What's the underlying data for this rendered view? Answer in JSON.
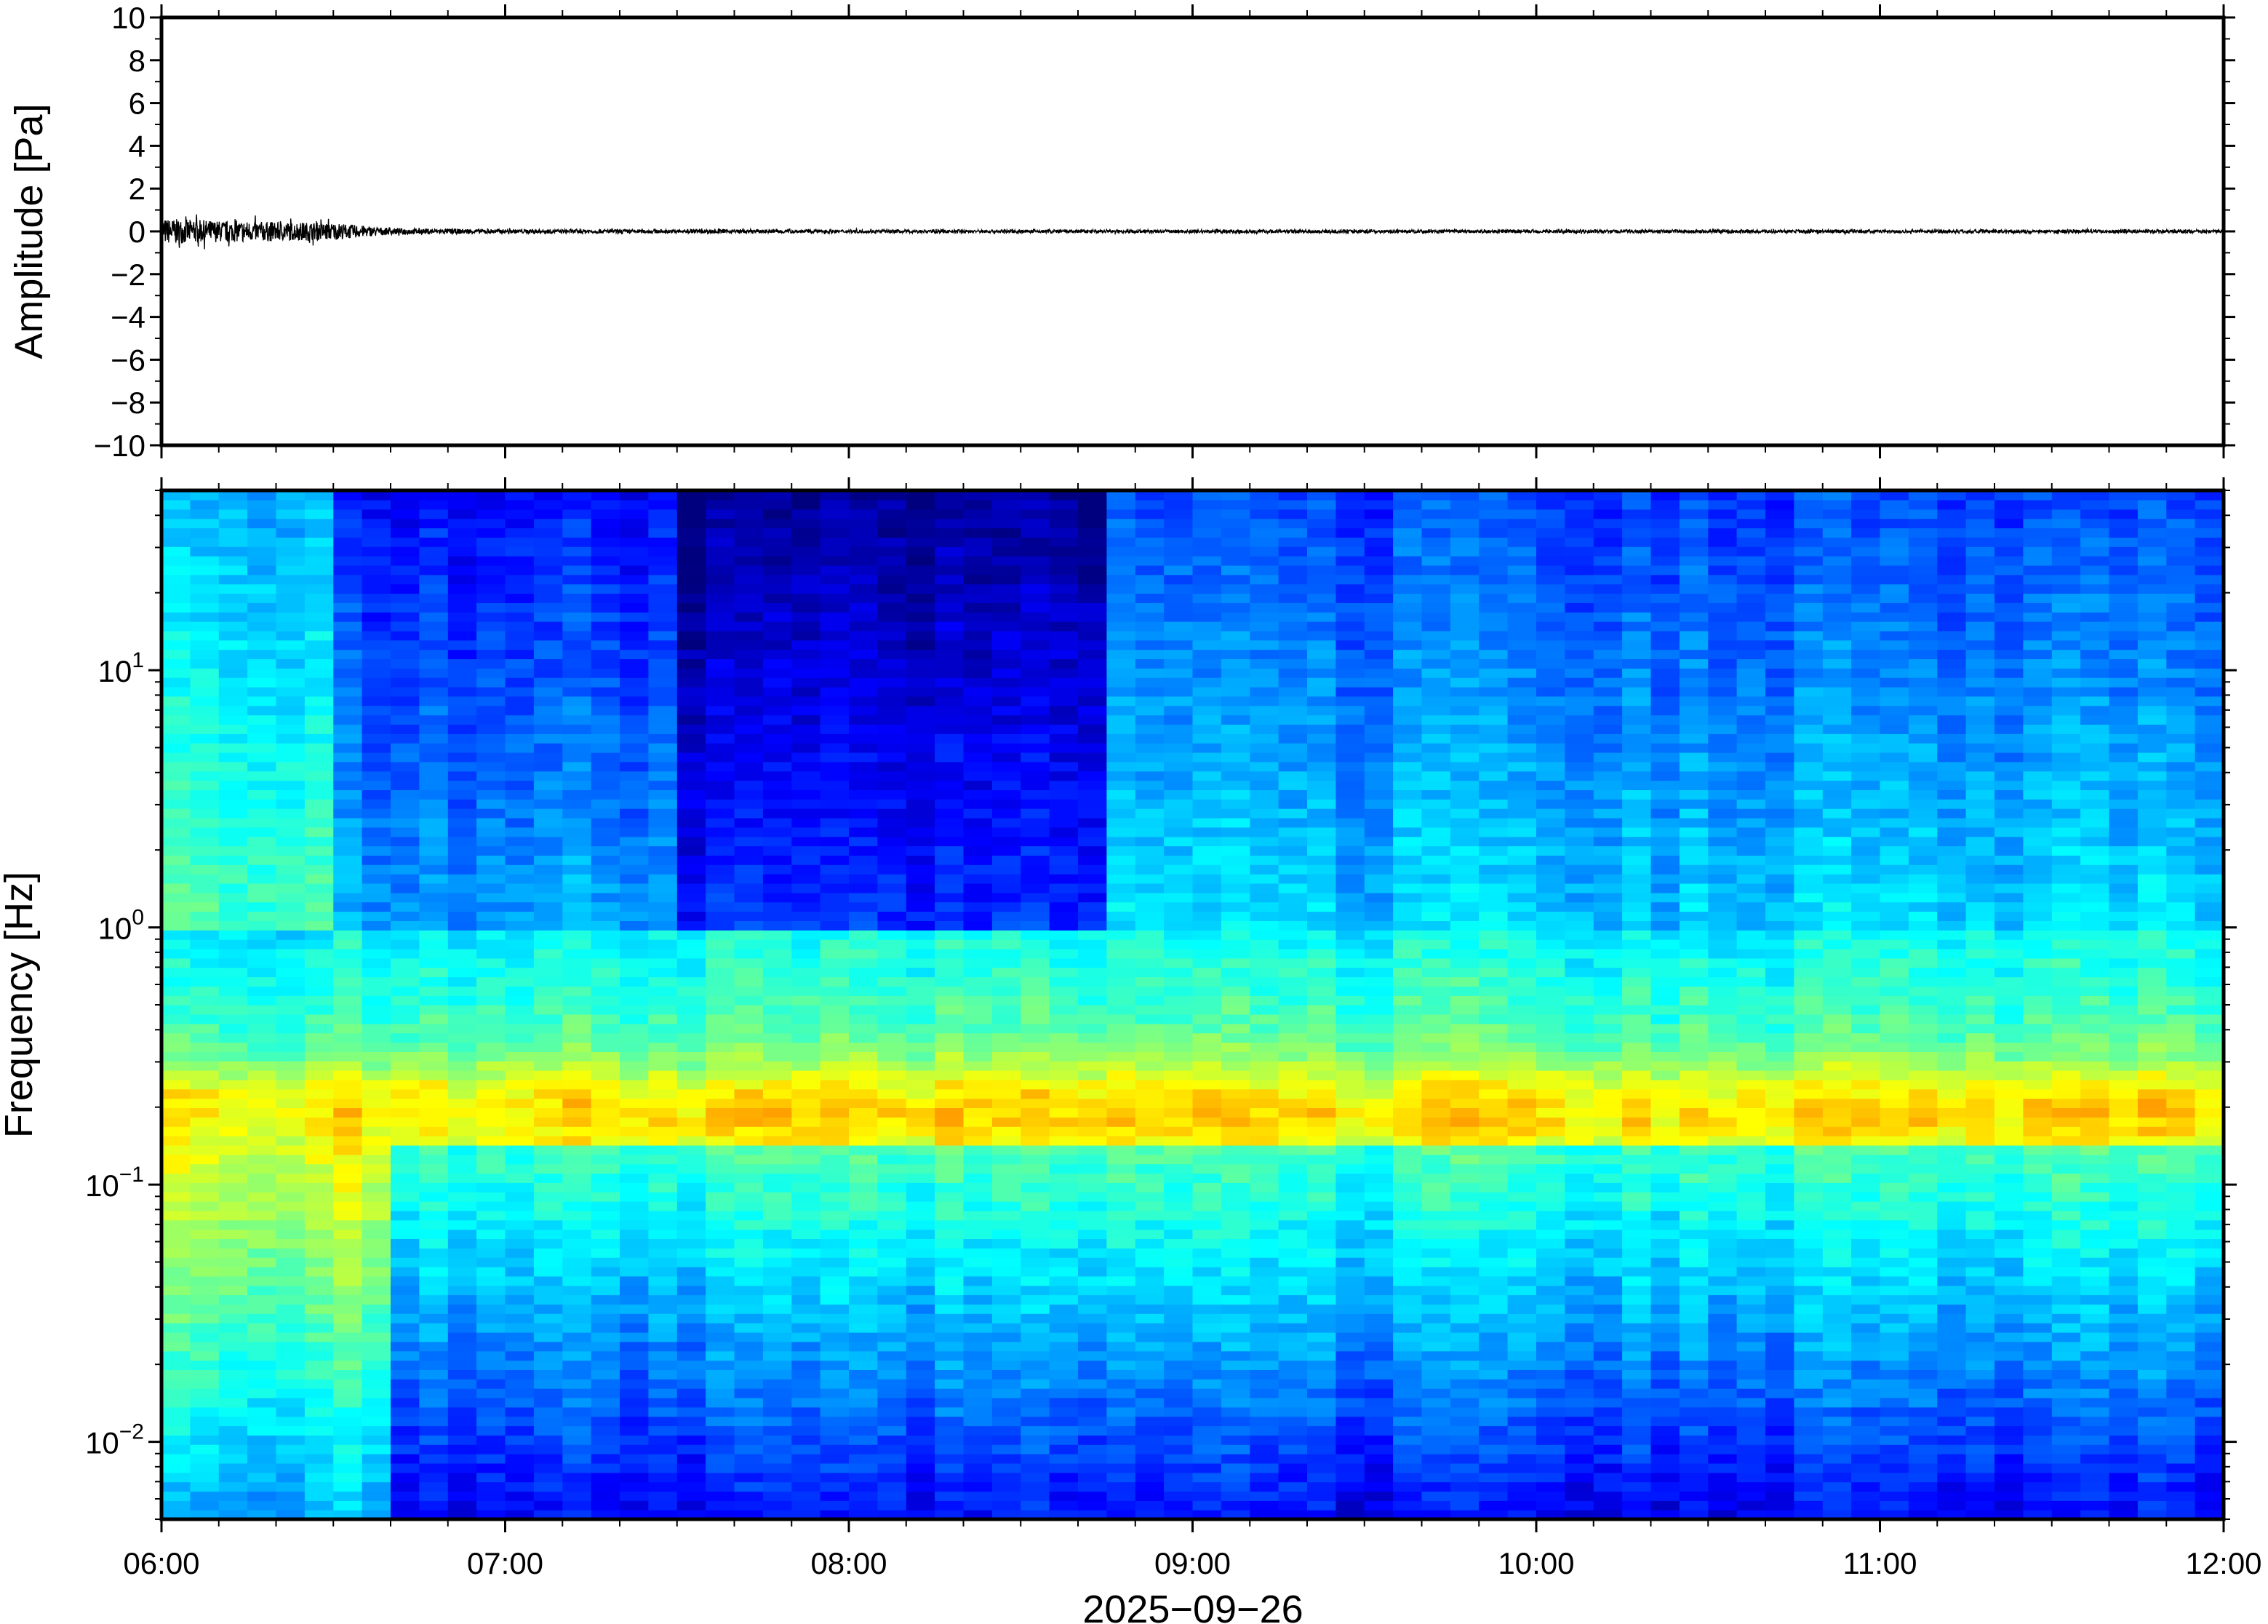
{
  "chart_data": [
    {
      "type": "line",
      "ylabel": "Amplitude [Pa]",
      "ylim": [
        -10,
        10
      ],
      "yticks": [
        "10",
        "8",
        "6",
        "4",
        "2",
        "0",
        "−2",
        "−4",
        "−6",
        "−8",
        "−10"
      ],
      "xlim": [
        "06:00",
        "12:00"
      ],
      "grid": false,
      "series": [
        {
          "description_of_trace": "waveform",
          "x": [
            "06:00",
            "06:10",
            "06:20",
            "06:30",
            "06:40",
            "07:00",
            "08:00",
            "09:00",
            "10:00",
            "11:00",
            "12:00"
          ],
          "y_envelope": [
            0.6,
            0.5,
            0.45,
            0.4,
            0.15,
            0.1,
            0.08,
            0.08,
            0.08,
            0.08,
            0.08
          ],
          "color": "#000000"
        }
      ]
    },
    {
      "type": "heatmap",
      "ylabel": "Frequency [Hz]",
      "yscale": "log",
      "ylim": [
        0.005,
        50
      ],
      "yticks": [
        {
          "base": "10",
          "exp": "1"
        },
        {
          "base": "10",
          "exp": "0"
        },
        {
          "base": "10",
          "exp": "−1"
        },
        {
          "base": "10",
          "exp": "−2"
        }
      ],
      "xlim": [
        "06:00",
        "12:00"
      ],
      "xticks": [
        "06:00",
        "07:00",
        "08:00",
        "09:00",
        "10:00",
        "11:00",
        "12:00"
      ],
      "xlabel": "2025−09−26",
      "colormap": "jet",
      "colors": [
        "#00007f",
        "#0000ff",
        "#007fff",
        "#00ffff",
        "#7fff7f",
        "#ffff00",
        "#ff7f00",
        "#ff0000"
      ]
    }
  ]
}
